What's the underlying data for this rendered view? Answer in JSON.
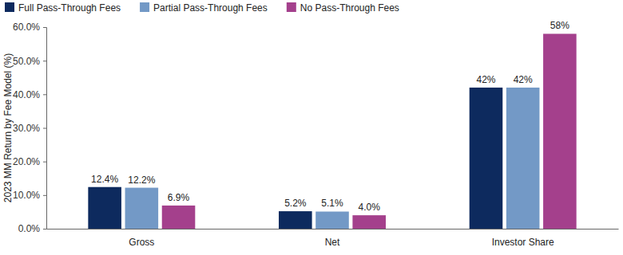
{
  "chart_data": {
    "type": "bar",
    "y_label": "2023 MM Return by Fee Model (%)",
    "categories": [
      "Gross",
      "Net",
      "Investor Share"
    ],
    "series": [
      {
        "name": "Full Pass-Through Fees",
        "color": "#0d2a5e",
        "values": [
          12.4,
          5.2,
          42
        ],
        "value_labels": [
          "12.4%",
          "5.2%",
          "42%"
        ]
      },
      {
        "name": "Partial Pass-Through Fees",
        "color": "#7399c6",
        "values": [
          12.2,
          5.1,
          42
        ],
        "value_labels": [
          "12.2%",
          "5.1%",
          "42%"
        ]
      },
      {
        "name": "No Pass-Through Fees",
        "color": "#a4408c",
        "values": [
          6.9,
          4.0,
          58
        ],
        "value_labels": [
          "6.9%",
          "4.0%",
          "58%"
        ]
      }
    ],
    "ylim": [
      0,
      60
    ],
    "yticks": [
      {
        "value": 0,
        "label": "0.0%"
      },
      {
        "value": 10,
        "label": "10.0%"
      },
      {
        "value": 20,
        "label": "20.0%"
      },
      {
        "value": 30,
        "label": "30.0%"
      },
      {
        "value": 40,
        "label": "40.0%"
      },
      {
        "value": 50,
        "label": "50.0%"
      },
      {
        "value": 60,
        "label": "60.0%"
      }
    ],
    "grid": false,
    "legend": "top-left",
    "data_labels": true
  }
}
